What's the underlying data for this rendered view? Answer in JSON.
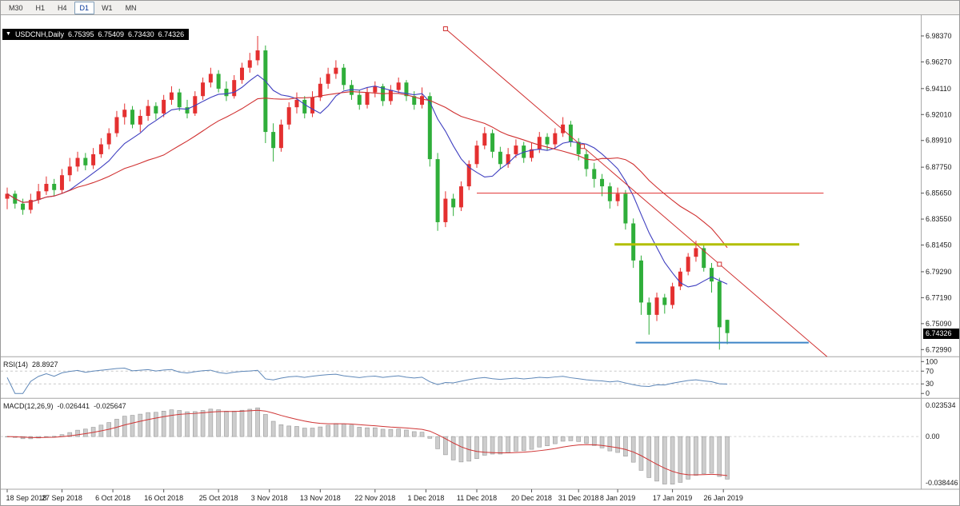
{
  "toolbar": {
    "timeframes": [
      "M30",
      "H1",
      "H4",
      "D1",
      "W1",
      "MN"
    ],
    "active": "D1"
  },
  "icons": {
    "header_arrow": "▼"
  },
  "chart": {
    "symbol": "USDCNH,Daily",
    "ohlc": {
      "open": "6.75395",
      "high": "6.75409",
      "low": "6.73430",
      "close": "6.74326"
    },
    "price_tag": "6.74326",
    "price_axis_ticks": [
      "6.98370",
      "6.96270",
      "6.94110",
      "6.92010",
      "6.89910",
      "6.87750",
      "6.85650",
      "6.83550",
      "6.81450",
      "6.79290",
      "6.77190",
      "6.75090",
      "6.72990"
    ],
    "date_axis_labels": [
      {
        "label": "18 Sep 2018",
        "i": 0
      },
      {
        "label": "27 Sep 2018",
        "i": 7
      },
      {
        "label": "6 Oct 2018",
        "i": 13.5
      },
      {
        "label": "16 Oct 2018",
        "i": 20
      },
      {
        "label": "25 Oct 2018",
        "i": 27
      },
      {
        "label": "3 Nov 2018",
        "i": 33.5
      },
      {
        "label": "13 Nov 2018",
        "i": 40
      },
      {
        "label": "22 Nov 2018",
        "i": 47
      },
      {
        "label": "1 Dec 2018",
        "i": 53.5
      },
      {
        "label": "11 Dec 2018",
        "i": 60
      },
      {
        "label": "20 Dec 2018",
        "i": 67
      },
      {
        "label": "31 Dec 2018",
        "i": 73
      },
      {
        "label": "8 Jan 2019",
        "i": 78
      },
      {
        "label": "17 Jan 2019",
        "i": 85
      },
      {
        "label": "26 Jan 2019",
        "i": 91.5
      }
    ],
    "colors": {
      "bull": "#e43030",
      "bear": "#2fae3a",
      "background": "#ffffff",
      "separator": "#a6a6a6",
      "axis_text": "#1a1a1a",
      "tag_bg": "#000000"
    }
  },
  "indicators": {
    "rsi": {
      "label": "RSI(14)",
      "value": "28.8927",
      "period": 14,
      "levels": [
        70,
        30
      ],
      "axis_ticks": [
        "100",
        "70",
        "30",
        "0"
      ],
      "line_color": "#5e87b8"
    },
    "macd": {
      "label": "MACD(12,26,9)",
      "value_main": "-0.026441",
      "value_signal": "-0.025647",
      "fast": 12,
      "slow": 26,
      "signal": 9,
      "axis_ticks": [
        "0.023534",
        "0.00",
        "-0.038446"
      ],
      "hist_fill": "#cdcdcd",
      "hist_stroke": "#9a9a9a",
      "signal_color": "#cf3535"
    }
  },
  "chart_data": {
    "type": "candlestick",
    "symbol": "USDCNH",
    "timeframe": "Daily",
    "price_range": [
      6.7299,
      6.9837
    ],
    "candles": [
      [
        6.852,
        6.861,
        6.8435,
        6.856
      ],
      [
        6.856,
        6.8585,
        6.844,
        6.848
      ],
      [
        6.848,
        6.852,
        6.839,
        6.843
      ],
      [
        6.843,
        6.856,
        6.84,
        6.851
      ],
      [
        6.851,
        6.864,
        6.848,
        6.858
      ],
      [
        6.858,
        6.87,
        6.855,
        6.864
      ],
      [
        6.864,
        6.868,
        6.854,
        6.859
      ],
      [
        6.859,
        6.876,
        6.856,
        6.871
      ],
      [
        6.871,
        6.885,
        6.866,
        6.878
      ],
      [
        6.878,
        6.89,
        6.874,
        6.885
      ],
      [
        6.885,
        6.889,
        6.875,
        6.879
      ],
      [
        6.879,
        6.893,
        6.876,
        6.888
      ],
      [
        6.888,
        6.901,
        6.885,
        6.896
      ],
      [
        6.896,
        6.909,
        6.892,
        6.905
      ],
      [
        6.905,
        6.923,
        6.902,
        6.918
      ],
      [
        6.918,
        6.929,
        6.912,
        6.924
      ],
      [
        6.924,
        6.927,
        6.909,
        6.912
      ],
      [
        6.912,
        6.924,
        6.906,
        6.919
      ],
      [
        6.919,
        6.932,
        6.915,
        6.927
      ],
      [
        6.927,
        6.93,
        6.916,
        6.921
      ],
      [
        6.921,
        6.936,
        6.918,
        6.932
      ],
      [
        6.932,
        6.943,
        6.928,
        6.938
      ],
      [
        6.938,
        6.941,
        6.923,
        6.926
      ],
      [
        6.926,
        6.932,
        6.917,
        6.921
      ],
      [
        6.921,
        6.939,
        6.919,
        6.935
      ],
      [
        6.935,
        6.95,
        6.932,
        6.946
      ],
      [
        6.946,
        6.958,
        6.942,
        6.953
      ],
      [
        6.953,
        6.956,
        6.938,
        6.941
      ],
      [
        6.941,
        6.947,
        6.931,
        6.935
      ],
      [
        6.935,
        6.952,
        6.933,
        6.948
      ],
      [
        6.948,
        6.962,
        6.945,
        6.958
      ],
      [
        6.958,
        6.97,
        6.954,
        6.964
      ],
      [
        6.964,
        6.9837,
        6.96,
        6.972
      ],
      [
        6.972,
        6.976,
        6.897,
        6.906
      ],
      [
        6.906,
        6.913,
        6.882,
        6.893
      ],
      [
        6.893,
        6.916,
        6.89,
        6.912
      ],
      [
        6.912,
        6.93,
        6.908,
        6.926
      ],
      [
        6.926,
        6.938,
        6.921,
        6.932
      ],
      [
        6.932,
        6.935,
        6.917,
        6.921
      ],
      [
        6.921,
        6.939,
        6.918,
        6.934
      ],
      [
        6.934,
        6.95,
        6.931,
        6.945
      ],
      [
        6.945,
        6.958,
        6.941,
        6.953
      ],
      [
        6.953,
        6.964,
        6.949,
        6.958
      ],
      [
        6.958,
        6.961,
        6.94,
        6.944
      ],
      [
        6.944,
        6.948,
        6.932,
        6.936
      ],
      [
        6.936,
        6.94,
        6.924,
        6.928
      ],
      [
        6.928,
        6.942,
        6.925,
        6.938
      ],
      [
        6.938,
        6.947,
        6.934,
        6.943
      ],
      [
        6.943,
        6.945,
        6.927,
        6.931
      ],
      [
        6.931,
        6.944,
        6.928,
        6.94
      ],
      [
        6.94,
        6.95,
        6.937,
        6.946
      ],
      [
        6.946,
        6.948,
        6.931,
        6.935
      ],
      [
        6.935,
        6.939,
        6.924,
        6.928
      ],
      [
        6.928,
        6.942,
        6.925,
        6.935
      ],
      [
        6.935,
        6.938,
        6.878,
        6.884
      ],
      [
        6.884,
        6.889,
        6.826,
        6.833
      ],
      [
        6.833,
        6.858,
        6.829,
        6.852
      ],
      [
        6.852,
        6.856,
        6.838,
        6.845
      ],
      [
        6.845,
        6.866,
        6.842,
        6.862
      ],
      [
        6.862,
        6.883,
        6.859,
        6.88
      ],
      [
        6.88,
        6.899,
        6.877,
        6.895
      ],
      [
        6.895,
        6.91,
        6.892,
        6.905
      ],
      [
        6.905,
        6.908,
        6.885,
        6.89
      ],
      [
        6.89,
        6.894,
        6.876,
        6.88
      ],
      [
        6.88,
        6.893,
        6.877,
        6.888
      ],
      [
        6.888,
        6.9,
        6.885,
        6.895
      ],
      [
        6.895,
        6.898,
        6.881,
        6.885
      ],
      [
        6.885,
        6.897,
        6.882,
        6.892
      ],
      [
        6.892,
        6.906,
        6.889,
        6.902
      ],
      [
        6.902,
        6.905,
        6.891,
        6.896
      ],
      [
        6.896,
        6.909,
        6.893,
        6.905
      ],
      [
        6.905,
        6.918,
        6.902,
        6.912
      ],
      [
        6.912,
        6.915,
        6.894,
        6.898
      ],
      [
        6.898,
        6.901,
        6.883,
        6.888
      ],
      [
        6.888,
        6.892,
        6.87,
        6.876
      ],
      [
        6.876,
        6.881,
        6.861,
        6.868
      ],
      [
        6.868,
        6.872,
        6.854,
        6.862
      ],
      [
        6.862,
        6.865,
        6.844,
        6.85
      ],
      [
        6.85,
        6.861,
        6.846,
        6.856
      ],
      [
        6.856,
        6.859,
        6.827,
        6.832
      ],
      [
        6.832,
        6.836,
        6.796,
        6.802
      ],
      [
        6.802,
        6.806,
        6.758,
        6.768
      ],
      [
        6.768,
        6.772,
        6.742,
        6.758
      ],
      [
        6.758,
        6.776,
        6.753,
        6.772
      ],
      [
        6.772,
        6.775,
        6.759,
        6.766
      ],
      [
        6.766,
        6.784,
        6.763,
        6.781
      ],
      [
        6.781,
        6.796,
        6.778,
        6.793
      ],
      [
        6.793,
        6.808,
        6.79,
        6.805
      ],
      [
        6.805,
        6.818,
        6.801,
        6.812
      ],
      [
        6.812,
        6.815,
        6.793,
        6.796
      ],
      [
        6.796,
        6.8,
        6.776,
        6.785
      ],
      [
        6.785,
        6.788,
        6.7299,
        6.748
      ],
      [
        6.75395,
        6.75409,
        6.7343,
        6.74326
      ]
    ],
    "overlays": {
      "moving_averages": [
        {
          "name": "fast-ma-line",
          "period": 8,
          "color": "#3f3fc0"
        },
        {
          "name": "slow-ma-line",
          "period": 21,
          "color": "#d03030"
        }
      ],
      "trendline": {
        "name": "descending-trendline",
        "color": "#d03030",
        "i1": 56,
        "p1": 6.9895,
        "i2": 91,
        "p2": 6.799,
        "extend": true
      },
      "hlines": [
        {
          "name": "resistance-line-red",
          "color": "#e03030",
          "width": 1,
          "price": 6.8565,
          "i1": 60,
          "i2": 104.3
        },
        {
          "name": "resistance-line-olive",
          "color": "#b2bf00",
          "width": 3,
          "price": 6.815,
          "i1": 77.6,
          "i2": 101.2
        },
        {
          "name": "support-line-blue",
          "color": "#3d85c8",
          "width": 2,
          "price": 6.7355,
          "i1": 80.3,
          "i2": 102.4
        }
      ]
    }
  }
}
